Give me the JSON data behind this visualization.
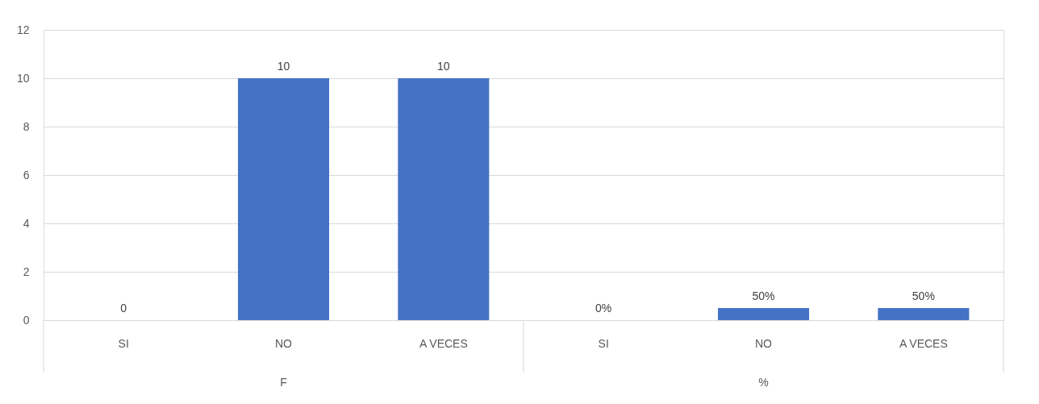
{
  "chart_data": {
    "type": "bar",
    "categories": [
      "SI",
      "NO",
      "A VECES",
      "SI",
      "NO",
      "A VECES"
    ],
    "values": [
      0,
      10,
      10,
      0,
      0.5,
      0.5
    ],
    "value_labels": [
      "0",
      "10",
      "10",
      "0%",
      "50%",
      "50%"
    ],
    "color": "#4472c4",
    "annotations": [
      "F",
      "%"
    ],
    "ylim": [
      0,
      12
    ],
    "yticks": [
      0,
      2,
      4,
      6,
      8,
      10,
      12
    ],
    "grid": "y"
  }
}
